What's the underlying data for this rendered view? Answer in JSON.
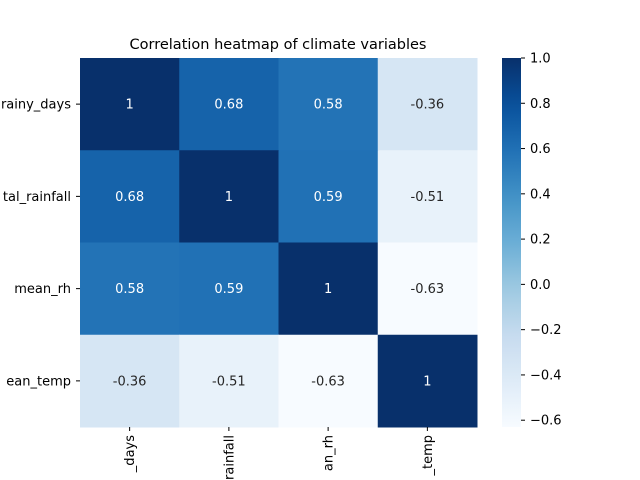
{
  "chart_data": {
    "type": "heatmap",
    "title": "Correlation heatmap of climate variables",
    "xlabel": "",
    "ylabel": "",
    "row_labels": [
      "rainy_days",
      "total_rainfall",
      "mean_rh",
      "mean_temp"
    ],
    "row_labels_shown": [
      "rainy_days",
      "tal_rainfall",
      "mean_rh",
      "ean_temp"
    ],
    "col_labels_shown": [
      "_days",
      "rainfall",
      "an_rh",
      "_temp"
    ],
    "values": [
      [
        1,
        0.68,
        0.58,
        -0.36
      ],
      [
        0.68,
        1,
        0.59,
        -0.51
      ],
      [
        0.58,
        0.59,
        1,
        -0.63
      ],
      [
        -0.36,
        -0.51,
        -0.63,
        1
      ]
    ],
    "annotations": [
      [
        "1",
        "0.68",
        "0.58",
        "-0.36"
      ],
      [
        "0.68",
        "1",
        "0.59",
        "-0.51"
      ],
      [
        "0.58",
        "0.59",
        "1",
        "-0.63"
      ],
      [
        "-0.36",
        "-0.51",
        "-0.63",
        "1"
      ]
    ],
    "colormap": "Blues",
    "colorbar": {
      "vmin": -0.63,
      "vmax": 1.0,
      "ticks": [
        -0.6,
        -0.4,
        -0.2,
        0.0,
        0.2,
        0.4,
        0.6,
        0.8,
        1.0
      ],
      "tick_labels": [
        "−0.6",
        "−0.4",
        "−0.2",
        "0.0",
        "0.2",
        "0.4",
        "0.6",
        "0.8",
        "1.0"
      ]
    }
  }
}
